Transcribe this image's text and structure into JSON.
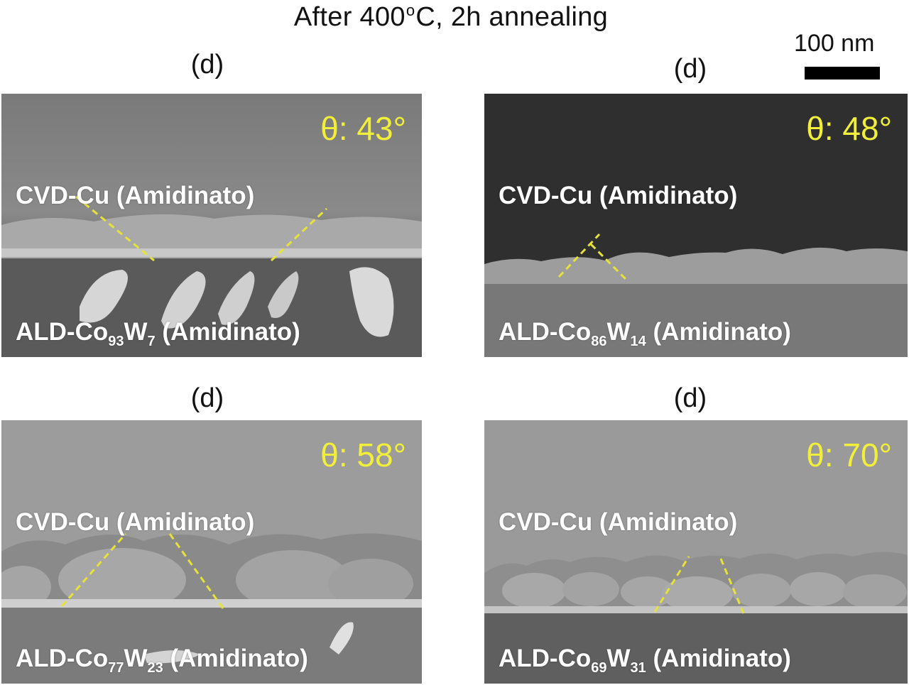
{
  "title": {
    "prefix": "After 400",
    "degree": "o",
    "suffix": "C, 2h annealing"
  },
  "scale_bar": {
    "label": "100 nm"
  },
  "panels": [
    {
      "label": "(d)",
      "theta": "θ: 43°",
      "top_layer": "CVD-Cu (Amidinato)",
      "bottom_layer": {
        "prefix": "ALD-Co",
        "co_sub": "93",
        "w": "W",
        "w_sub": "7",
        "suffix": " (Amidinato)"
      }
    },
    {
      "label": "(d)",
      "theta": "θ: 48°",
      "top_layer": "CVD-Cu (Amidinato)",
      "bottom_layer": {
        "prefix": "ALD-Co",
        "co_sub": "86",
        "w": "W",
        "w_sub": "14",
        "suffix": " (Amidinato)"
      }
    },
    {
      "label": "(d)",
      "theta": "θ: 58°",
      "top_layer": "CVD-Cu (Amidinato)",
      "bottom_layer": {
        "prefix": "ALD-Co",
        "co_sub": "77",
        "w": "W",
        "w_sub": "23",
        "suffix": " (Amidinato)"
      }
    },
    {
      "label": "(d)",
      "theta": "θ: 70°",
      "top_layer": "CVD-Cu (Amidinato)",
      "bottom_layer": {
        "prefix": "ALD-Co",
        "co_sub": "69",
        "w": "W",
        "w_sub": "31",
        "suffix": " (Amidinato)"
      }
    }
  ],
  "colors": {
    "angle_text": "#f2ef3a",
    "dashed_guide": "#e6e23a",
    "layer_text": "#ffffff"
  }
}
